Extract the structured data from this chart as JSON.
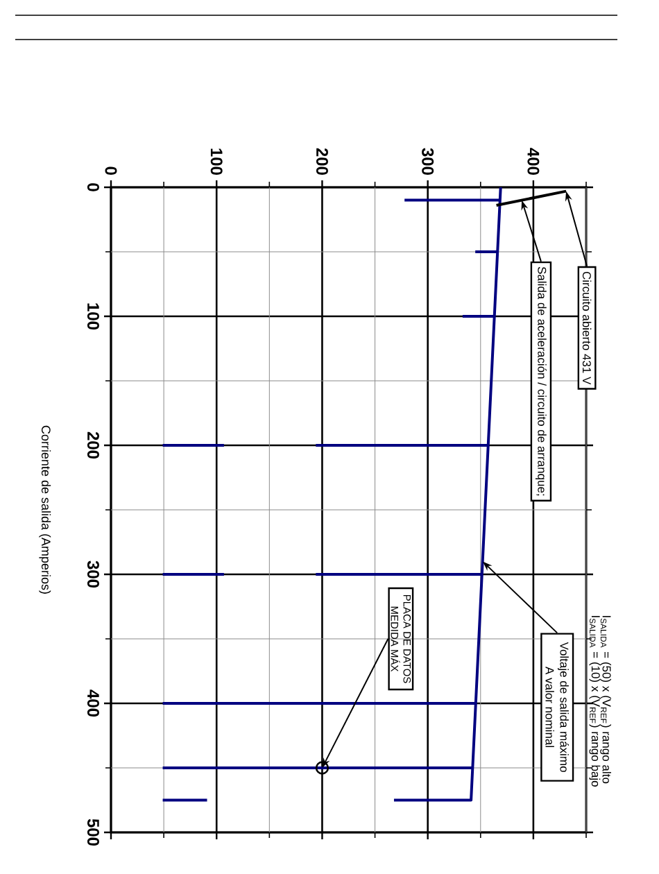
{
  "chart_data": {
    "type": "line",
    "ylabel": "Corriente de salida (Amperios)",
    "xlim": [
      0,
      450
    ],
    "xticks": [
      0,
      {
        "value": 50,
        "label": null
      },
      100,
      {
        "value": 150,
        "label": null
      },
      200,
      {
        "value": 250,
        "label": null
      },
      300,
      {
        "value": 350,
        "label": null
      },
      400,
      {
        "value": 450,
        "label": null
      }
    ],
    "ylim": [
      500,
      0
    ],
    "yticks": [
      0,
      {
        "value": 50,
        "label": null
      },
      100,
      {
        "value": 150,
        "label": null
      },
      200,
      {
        "value": 250,
        "label": null
      },
      300,
      {
        "value": 350,
        "label": null
      },
      400,
      {
        "value": 450,
        "label": null
      },
      500
    ],
    "grid": true,
    "series": [
      {
        "color": "#000080",
        "x": [
          369,
          341,
          268
        ],
        "values": [
          0,
          475,
          475
        ]
      },
      {
        "color": "#000080",
        "x": [
          278,
          368
        ],
        "values": [
          10,
          10
        ]
      },
      {
        "color": "#000080",
        "x": [
          345,
          366
        ],
        "values": [
          50,
          50
        ]
      },
      {
        "color": "#000080",
        "x": [
          333,
          363
        ],
        "values": [
          100,
          100
        ]
      },
      {
        "color": "#000080",
        "x": [
          49,
          107
        ],
        "values": [
          200,
          200
        ]
      },
      {
        "color": "#000080",
        "x": [
          194,
          357
        ],
        "values": [
          200,
          200
        ]
      },
      {
        "color": "#000080",
        "x": [
          49,
          107
        ],
        "values": [
          300,
          300
        ]
      },
      {
        "color": "#000080",
        "x": [
          194,
          351
        ],
        "values": [
          300,
          300
        ]
      },
      {
        "color": "#000080",
        "x": [
          49,
          345
        ],
        "values": [
          400,
          400
        ]
      },
      {
        "color": "#000080",
        "x": [
          49,
          342
        ],
        "values": [
          450,
          450
        ]
      },
      {
        "color": "#000080",
        "x": [
          49,
          91
        ],
        "values": [
          475,
          475
        ]
      },
      {
        "color": "#000000",
        "x": [
          431,
          365
        ],
        "values": [
          3,
          14
        ]
      },
      {
        "type": "scatter",
        "color": "#000000",
        "marker": "circle",
        "x": [
          200
        ],
        "values": [
          450
        ]
      }
    ],
    "annotations": [
      {
        "text": "Circuito abierto 431 V",
        "x": 431,
        "y": 3
      },
      {
        "text": "Salida de aceleración / circuito de arranque;",
        "x": 389,
        "y": 10
      },
      {
        "text": "Voltaje de salida máximo A valor nominal",
        "x": 352,
        "y": 290
      },
      "I$_{SALIDA}$ = (50) x (V$_{REF}$) rango alto",
      "I$_{SALIDA}$ = (10) x (V$_{REF}$) rango bajo",
      {
        "text": "PLACA DE DATOS MEDIDA MÁX",
        "x": 200,
        "y": 450
      }
    ]
  }
}
